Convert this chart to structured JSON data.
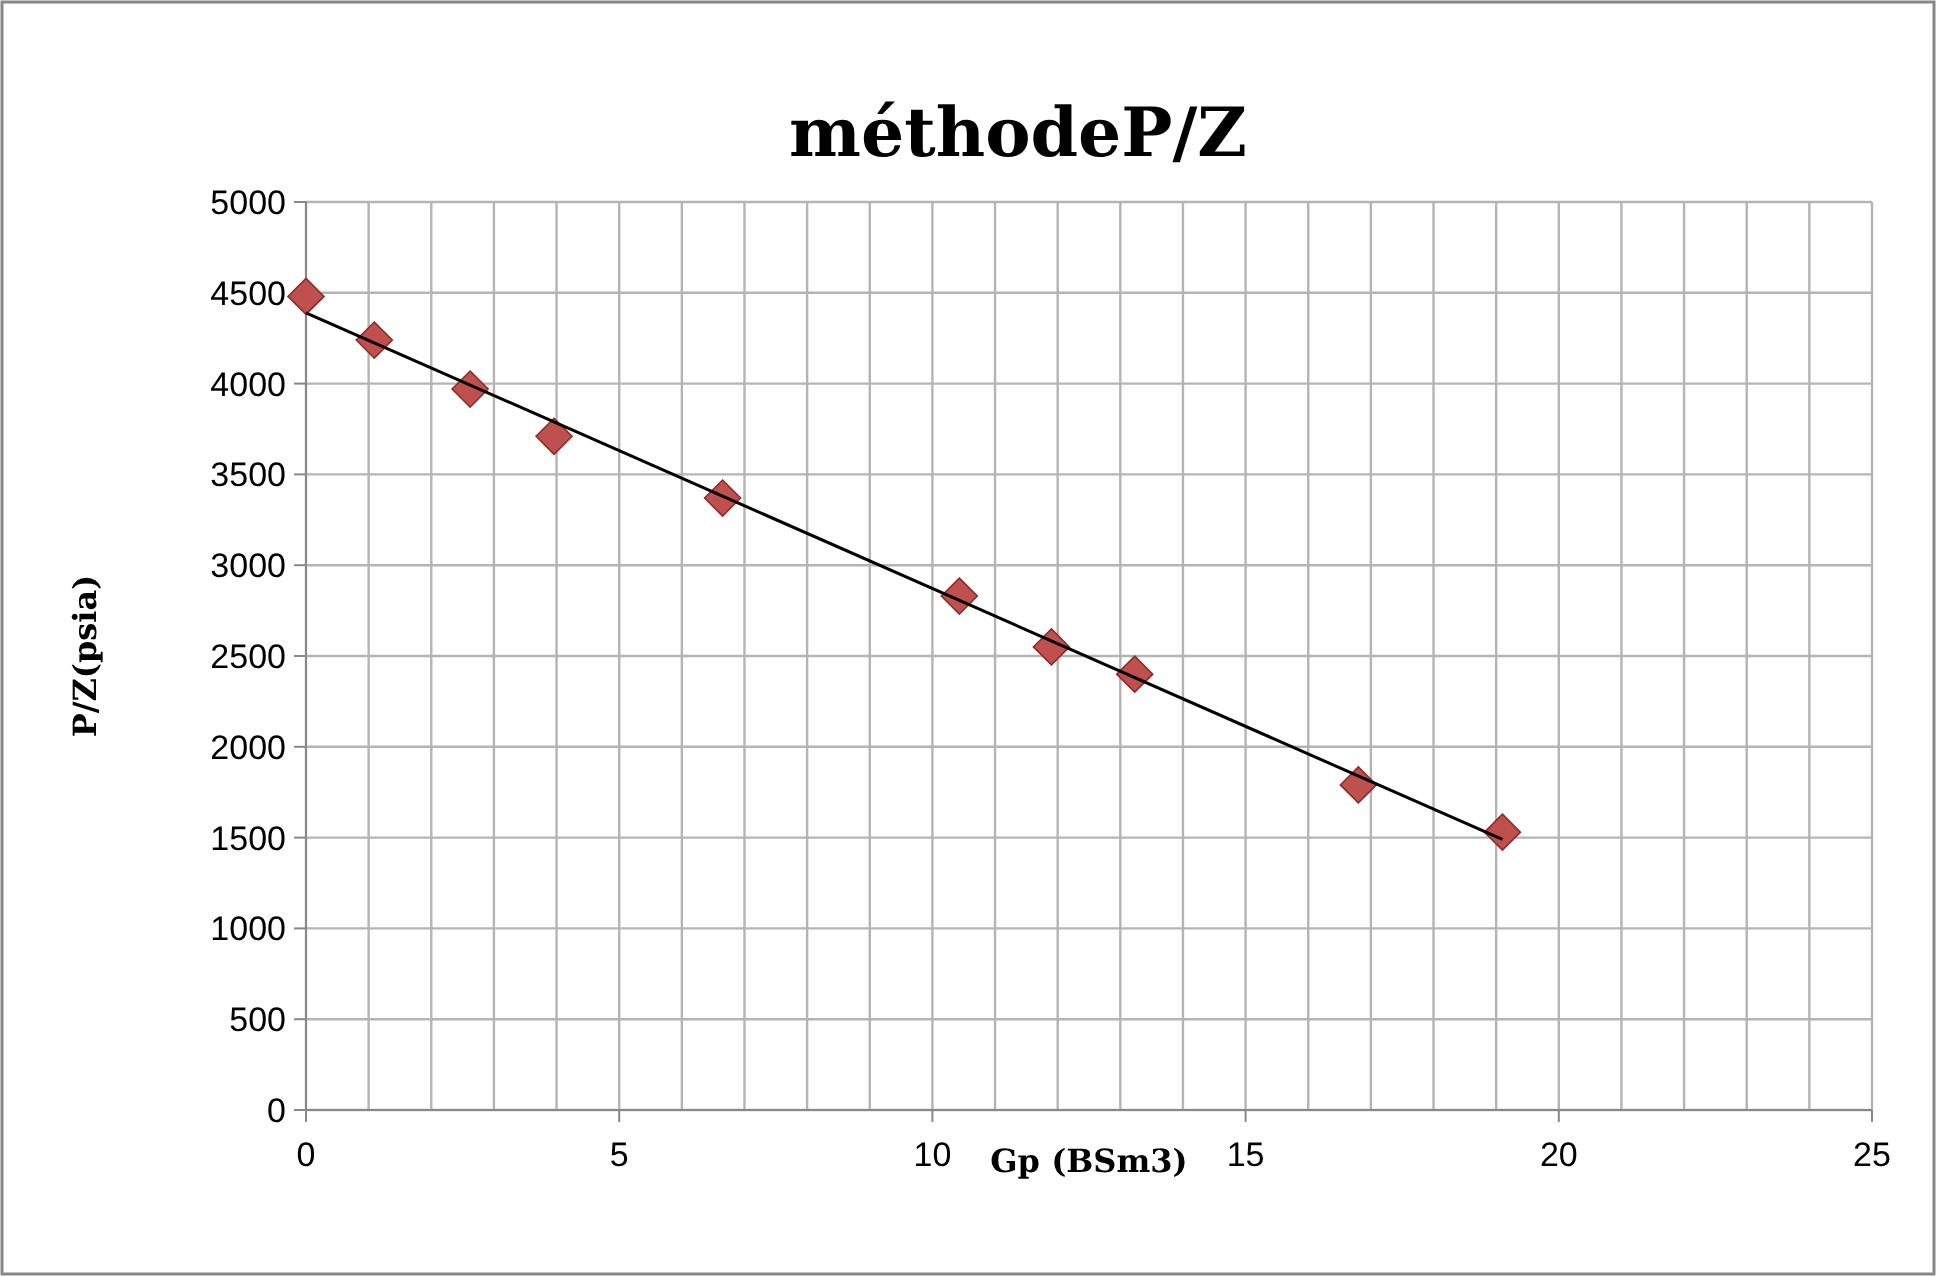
{
  "chart_data": {
    "type": "scatter",
    "title": "méthodeP/Z",
    "xlabel": "Gp (BSm3)",
    "ylabel": "P/Z(psia)",
    "xlim": [
      0,
      25
    ],
    "xticks": [
      0,
      5,
      10,
      15,
      20,
      25
    ],
    "ylim": [
      0,
      5000
    ],
    "yticks": [
      0,
      500,
      1000,
      1500,
      2000,
      2500,
      3000,
      3500,
      4000,
      4500,
      5000
    ],
    "grid": true,
    "marker": "diamond",
    "series": [
      {
        "color": "#c0504d",
        "x": [
          0,
          1.09,
          2.62,
          3.96,
          6.65,
          10.43,
          11.9,
          13.23,
          16.8,
          19.1
        ],
        "values": [
          4480,
          4240,
          3970,
          3710,
          3370,
          2830,
          2550,
          2400,
          1790,
          1530
        ]
      },
      {
        "type": "line",
        "color": "#000000",
        "marker": "none",
        "x": [
          0,
          19.1
        ],
        "values": [
          4390,
          1490
        ]
      }
    ]
  }
}
